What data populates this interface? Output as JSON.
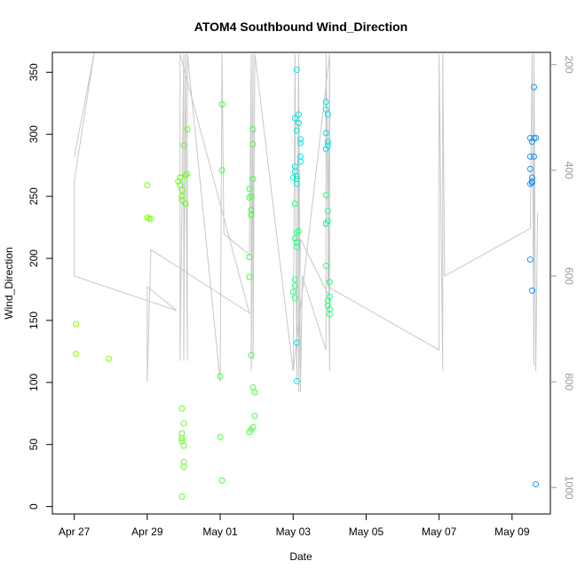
{
  "chart_data": {
    "type": "scatter",
    "title": "ATOM4 Southbound Wind_Direction",
    "xlabel": "Date",
    "ylabel": "Wind_Direction",
    "x_ticks": [
      "Apr 27",
      "Apr 29",
      "May 01",
      "May 03",
      "May 05",
      "May 07",
      "May 09"
    ],
    "x_tick_day_offsets": [
      0,
      2,
      4,
      6,
      8,
      10,
      12
    ],
    "xlim_days": [
      -0.6,
      13.05
    ],
    "ylim": [
      -6,
      366
    ],
    "y_ticks": [
      0,
      50,
      100,
      150,
      200,
      250,
      300,
      350
    ],
    "secondary_axis": {
      "side": "right",
      "ylim": [
        1050,
        177
      ],
      "ticks": [
        200,
        400,
        600,
        800,
        1000
      ],
      "color": "#999999"
    },
    "grid": false,
    "legend": "none",
    "series": [
      {
        "color": "#7FFF00",
        "points": [
          [
            0.05,
            147
          ],
          [
            0.05,
            123
          ],
          [
            0.95,
            119
          ],
          [
            2.0,
            259
          ],
          [
            2.0,
            233
          ],
          [
            2.05,
            232
          ],
          [
            2.1,
            232
          ]
        ]
      },
      {
        "color": "#66FF1A",
        "points": [
          [
            2.85,
            262
          ],
          [
            2.9,
            265
          ],
          [
            2.9,
            259
          ],
          [
            2.95,
            255
          ],
          [
            2.95,
            250
          ],
          [
            2.95,
            247
          ],
          [
            3.0,
            291
          ],
          [
            3.05,
            267
          ],
          [
            3.05,
            244
          ],
          [
            3.1,
            304
          ],
          [
            3.1,
            268
          ],
          [
            2.95,
            79
          ],
          [
            3.0,
            67
          ],
          [
            2.95,
            59
          ],
          [
            2.95,
            55
          ],
          [
            2.95,
            53
          ],
          [
            3.0,
            49
          ],
          [
            3.0,
            36
          ],
          [
            3.0,
            32
          ],
          [
            2.95,
            8
          ]
        ]
      },
      {
        "color": "#40FF40",
        "points": [
          [
            4.05,
            324
          ],
          [
            4.05,
            271
          ],
          [
            4.0,
            105
          ],
          [
            4.0,
            56
          ],
          [
            4.05,
            21
          ],
          [
            4.8,
            256
          ],
          [
            4.8,
            249
          ],
          [
            4.85,
            250
          ],
          [
            4.85,
            239
          ],
          [
            4.85,
            235
          ],
          [
            4.9,
            304
          ],
          [
            4.9,
            292
          ],
          [
            4.9,
            264
          ],
          [
            4.8,
            201
          ],
          [
            4.8,
            185
          ],
          [
            4.85,
            122
          ],
          [
            4.9,
            96
          ],
          [
            4.95,
            92
          ],
          [
            4.95,
            73
          ],
          [
            4.9,
            64
          ],
          [
            4.85,
            62
          ],
          [
            4.8,
            60
          ]
        ]
      },
      {
        "color": "#26FF80",
        "points": [
          [
            6.05,
            244
          ],
          [
            6.1,
            264
          ],
          [
            6.05,
            216
          ],
          [
            6.1,
            221
          ],
          [
            6.1,
            213
          ],
          [
            6.1,
            209
          ],
          [
            6.15,
            222
          ],
          [
            6.05,
            183
          ],
          [
            6.05,
            178
          ],
          [
            6.0,
            173
          ],
          [
            6.05,
            168
          ],
          [
            6.15,
            309
          ],
          [
            6.9,
            251
          ],
          [
            6.95,
            238
          ],
          [
            6.95,
            230
          ],
          [
            6.9,
            194
          ],
          [
            7.0,
            181
          ],
          [
            6.95,
            166
          ],
          [
            6.95,
            162
          ],
          [
            7.0,
            169
          ],
          [
            7.0,
            159
          ],
          [
            7.0,
            155
          ]
        ]
      },
      {
        "color": "#00E5E5",
        "points": [
          [
            6.1,
            352
          ],
          [
            6.05,
            313
          ],
          [
            6.15,
            316
          ],
          [
            6.15,
            309
          ],
          [
            6.1,
            303
          ],
          [
            6.2,
            296
          ],
          [
            6.2,
            293
          ],
          [
            6.2,
            282
          ],
          [
            6.2,
            278
          ],
          [
            6.05,
            274
          ],
          [
            6.05,
            270
          ],
          [
            6.1,
            266
          ],
          [
            6.0,
            265
          ],
          [
            6.1,
            260
          ],
          [
            6.1,
            132
          ],
          [
            6.1,
            101
          ],
          [
            6.9,
            326
          ],
          [
            6.9,
            320
          ],
          [
            6.95,
            316
          ],
          [
            6.9,
            301
          ],
          [
            6.95,
            294
          ],
          [
            6.95,
            291
          ],
          [
            6.9,
            288
          ],
          [
            6.9,
            228
          ]
        ]
      },
      {
        "color": "#1E90FF",
        "points": [
          [
            12.5,
            297
          ],
          [
            12.6,
            297
          ],
          [
            12.65,
            297
          ],
          [
            12.55,
            294
          ],
          [
            12.5,
            282
          ],
          [
            12.6,
            282
          ],
          [
            12.5,
            272
          ],
          [
            12.55,
            265
          ],
          [
            12.55,
            262
          ],
          [
            12.5,
            260
          ],
          [
            12.55,
            261
          ],
          [
            12.5,
            199
          ],
          [
            12.55,
            174
          ],
          [
            12.6,
            338
          ],
          [
            12.65,
            18
          ]
        ]
      }
    ],
    "background_line": {
      "color": "#C8C8C8",
      "note_axis": "secondary",
      "points": [
        [
          0.0,
          375
        ],
        [
          0.55,
          177
        ],
        [
          0.0,
          420
        ],
        [
          0.0,
          600
        ],
        [
          2.8,
          665
        ],
        [
          2.0,
          620
        ],
        [
          2.0,
          800
        ],
        [
          2.1,
          550
        ],
        [
          4.8,
          670
        ],
        [
          2.9,
          180
        ],
        [
          2.9,
          760
        ],
        [
          3.0,
          180
        ],
        [
          3.0,
          760
        ],
        [
          3.05,
          180
        ],
        [
          3.1,
          760
        ],
        [
          3.1,
          180
        ],
        [
          4.0,
          800
        ],
        [
          4.05,
          180
        ],
        [
          4.1,
          520
        ],
        [
          4.8,
          560
        ],
        [
          4.85,
          180
        ],
        [
          4.85,
          780
        ],
        [
          4.9,
          180
        ],
        [
          4.9,
          760
        ],
        [
          4.95,
          180
        ],
        [
          6.0,
          780
        ],
        [
          6.05,
          180
        ],
        [
          6.1,
          780
        ],
        [
          6.15,
          180
        ],
        [
          6.15,
          820
        ],
        [
          6.2,
          530
        ],
        [
          7.0,
          640
        ],
        [
          6.9,
          180
        ],
        [
          7.0,
          760
        ],
        [
          7.0,
          180
        ],
        [
          6.0,
          780
        ],
        [
          6.05,
          180
        ],
        [
          6.1,
          800
        ],
        [
          6.15,
          180
        ],
        [
          6.2,
          820
        ],
        [
          6.25,
          600
        ],
        [
          6.9,
          740
        ],
        [
          6.9,
          180
        ],
        [
          7.0,
          780
        ],
        [
          7.0,
          180
        ],
        [
          6.95,
          620
        ],
        [
          10.0,
          740
        ],
        [
          10.0,
          180
        ],
        [
          10.1,
          780
        ],
        [
          10.1,
          180
        ],
        [
          10.15,
          600
        ],
        [
          12.5,
          510
        ],
        [
          12.55,
          180
        ],
        [
          12.6,
          770
        ],
        [
          12.6,
          180
        ],
        [
          12.65,
          780
        ],
        [
          12.7,
          480
        ]
      ]
    }
  }
}
